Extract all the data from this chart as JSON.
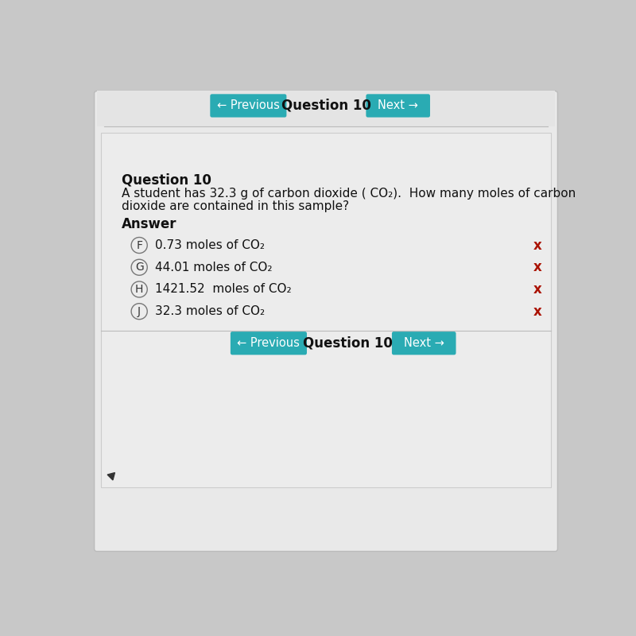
{
  "bg_color": "#c8c8c8",
  "outer_bg": "#d0d0d0",
  "card_color": "#e8e8e8",
  "white_card": "#ebebeb",
  "teal_color": "#2aabb3",
  "teal_text": "#ffffff",
  "question_label": "Question 10",
  "question_text_line1": "A student has 32.3 g of carbon dioxide ( CO₂).  How many moles of carbon",
  "question_text_line2": "dioxide are contained in this sample?",
  "answer_label": "Answer",
  "choices": [
    {
      "letter": "F",
      "text": "0.73 moles of CO₂"
    },
    {
      "letter": "G",
      "text": "44.01 moles of CO₂"
    },
    {
      "letter": "H",
      "text": "1421.52  moles of CO₂"
    },
    {
      "letter": "J",
      "text": "32.3 moles of CO₂"
    }
  ],
  "nav_label": "Question 10",
  "prev_text": "← Previous",
  "next_text": "Next →",
  "x_mark_color": "#aa1100",
  "line_color": "#bbbbbb",
  "text_dark": "#111111",
  "circle_edge": "#777777"
}
